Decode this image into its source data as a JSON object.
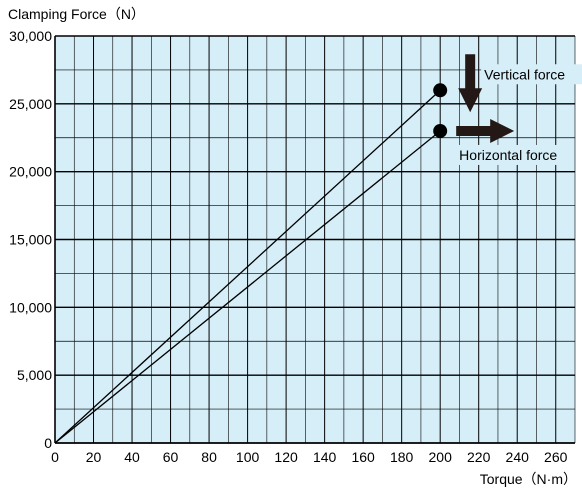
{
  "chart_data": {
    "type": "line",
    "ylabel": "Clamping Force（N）",
    "xlabel": "Torque（N·m）",
    "xlim": [
      0,
      270
    ],
    "ylim": [
      0,
      30000
    ],
    "x_ticks": [
      0,
      20,
      40,
      60,
      80,
      100,
      120,
      140,
      160,
      180,
      200,
      220,
      240,
      260
    ],
    "x_tick_labels": [
      "0",
      "20",
      "40",
      "60",
      "80",
      "100",
      "120",
      "140",
      "160",
      "180",
      "200",
      "220",
      "240",
      "260"
    ],
    "y_ticks": [
      0,
      5000,
      10000,
      15000,
      20000,
      25000,
      30000
    ],
    "y_tick_labels": [
      "0",
      "5,000",
      "10,000",
      "15,000",
      "20,000",
      "25,000",
      "30,000"
    ],
    "grid": true,
    "series": [
      {
        "name": "Vertical force",
        "x": [
          0,
          200
        ],
        "y": [
          0,
          26000
        ]
      },
      {
        "name": "Horizontal force",
        "x": [
          0,
          200
        ],
        "y": [
          0,
          23000
        ]
      }
    ],
    "annotations": [
      {
        "text": "Vertical force",
        "x": 200,
        "y": 26000,
        "arrow": "down"
      },
      {
        "text": "Horizontal force",
        "x": 200,
        "y": 23000,
        "arrow": "right"
      }
    ]
  },
  "colors": {
    "plot_background": "#d6eef8",
    "grid_line": "#000000",
    "series_line": "#000000",
    "marker": "#000000",
    "arrow": "#231815"
  }
}
